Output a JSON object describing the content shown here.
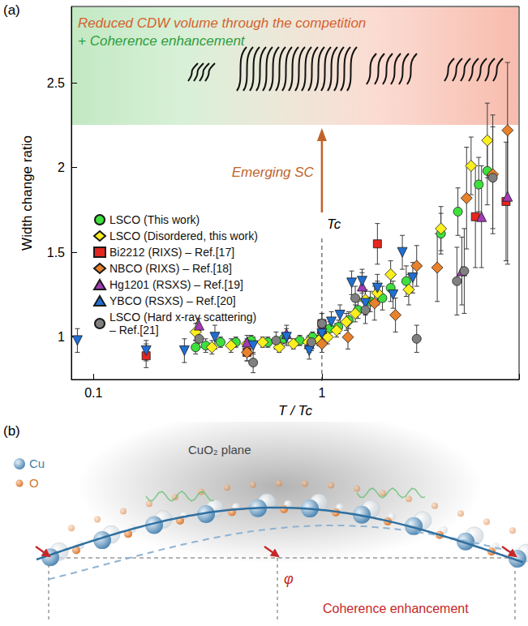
{
  "chart_data": {
    "type": "scatter",
    "label": "(a)",
    "x_label": "T / Tc",
    "y_label": "Width change ratio",
    "log": "x",
    "xlim": [
      0.08,
      7.3
    ],
    "xticks": [
      0.1,
      1
    ],
    "ylim": [
      0.75,
      2.95
    ],
    "yticks": [
      1,
      1.5,
      2,
      2.5
    ],
    "grid": false,
    "legend": "left",
    "reference_line": {
      "x": 1,
      "label": "Tc"
    },
    "annotations": [
      {
        "text": "Reduced CDW volume through the competition",
        "color": "#d4622e"
      },
      {
        "text": "+ Coherence enhancement",
        "color": "#2e9e3e"
      },
      {
        "text": "Emerging SC",
        "color": "#c0632a"
      }
    ],
    "series": [
      {
        "name": "LSCO (This work)",
        "color": "#3ee03e",
        "marker": "circle",
        "x": [
          0.28,
          0.31,
          0.36,
          0.42,
          0.49,
          0.58,
          0.68,
          0.8,
          0.91,
          1.0,
          1.08,
          1.18,
          1.31,
          1.44,
          1.63,
          1.84,
          2.0,
          2.34,
          3.32,
          3.94,
          4.86,
          5.3
        ],
        "values": [
          0.94,
          0.95,
          0.97,
          0.97,
          0.98,
          0.97,
          0.99,
          0.98,
          1.0,
          1.03,
          1.05,
          1.06,
          1.1,
          1.16,
          1.21,
          1.23,
          1.29,
          1.33,
          1.61,
          1.74,
          1.9,
          1.98
        ],
        "errors": [
          0.04,
          0.04,
          0.03,
          0.03,
          0.03,
          0.03,
          0.03,
          0.03,
          0.03,
          0.04,
          0.04,
          0.04,
          0.05,
          0.05,
          0.06,
          0.07,
          0.08,
          0.09,
          0.12,
          0.14,
          0.16,
          0.2
        ]
      },
      {
        "name": "LSCO (Disordered, this work)",
        "color": "#fbee1e",
        "marker": "diamond",
        "x": [
          0.28,
          0.33,
          0.4,
          0.47,
          0.55,
          0.65,
          0.75,
          0.87,
          0.97,
          1.06,
          1.16,
          1.28,
          1.4,
          1.55,
          1.75,
          2.0,
          2.4,
          3.32,
          4.5,
          5.3
        ],
        "values": [
          1.03,
          0.94,
          0.95,
          0.96,
          0.97,
          0.94,
          0.96,
          0.97,
          0.98,
          1.0,
          1.04,
          1.09,
          1.14,
          1.22,
          1.26,
          1.37,
          1.28,
          1.64,
          2.01,
          2.16
        ],
        "errors": [
          0.05,
          0.04,
          0.04,
          0.03,
          0.03,
          0.03,
          0.03,
          0.03,
          0.03,
          0.04,
          0.04,
          0.05,
          0.05,
          0.06,
          0.07,
          0.08,
          0.09,
          0.13,
          0.17,
          0.22
        ]
      },
      {
        "name": "Bi2212 (RIXS) – Ref.[17]",
        "color": "#e4261f",
        "marker": "square",
        "x": [
          0.17,
          0.47,
          1.0,
          1.75,
          4.7,
          6.4
        ],
        "values": [
          0.89,
          0.91,
          1.08,
          1.55,
          1.71,
          1.8
        ],
        "errors": [
          0.07,
          0.05,
          0.06,
          0.12,
          0.3,
          0.35
        ]
      },
      {
        "name": "NBCO (RIXS) – Ref.[18]",
        "color": "#e8812b",
        "marker": "diamond",
        "x": [
          0.47,
          1.0,
          1.3,
          1.7,
          2.1,
          2.6,
          3.2,
          4.3,
          5.6,
          6.5
        ],
        "values": [
          0.91,
          0.96,
          1.0,
          1.2,
          1.13,
          1.42,
          1.41,
          1.82,
          1.96,
          2.22
        ],
        "errors": [
          0.05,
          0.05,
          0.07,
          0.1,
          0.1,
          0.12,
          0.2,
          0.3,
          0.35,
          0.4
        ]
      },
      {
        "name": "Hg1201 (RSXS) – Ref.[19]",
        "color": "#a23bb5",
        "marker": "triangle",
        "x": [
          0.29,
          0.47,
          0.7,
          0.88,
          1.0,
          1.5,
          4.1,
          5.0,
          6.5
        ],
        "values": [
          1.07,
          0.97,
          1.02,
          0.96,
          1.05,
          1.3,
          1.39,
          1.71,
          1.83
        ],
        "errors": [
          0.04,
          0.04,
          0.05,
          0.05,
          0.05,
          0.08,
          0.2,
          0.3,
          0.4
        ]
      },
      {
        "name": "YBCO (RSXS) – Ref.[20]",
        "color": "#1f6fd4",
        "marker": "triangle_down",
        "x": [
          0.085,
          0.17,
          0.25,
          0.34,
          0.5,
          0.7,
          0.88,
          1.0,
          1.1,
          1.2,
          1.35,
          1.5,
          1.55,
          1.75,
          2.05,
          2.25,
          2.5
        ],
        "values": [
          0.98,
          0.92,
          0.92,
          1.0,
          0.95,
          1.0,
          0.92,
          1.02,
          1.09,
          1.13,
          1.32,
          1.33,
          1.2,
          1.29,
          1.25,
          1.5,
          1.35
        ],
        "errors": [
          0.07,
          0.06,
          0.07,
          0.07,
          0.05,
          0.05,
          0.05,
          0.06,
          0.06,
          0.06,
          0.07,
          0.07,
          0.07,
          0.08,
          0.08,
          0.1,
          0.09
        ]
      },
      {
        "name": "LSCO (Hard x-ray scattering) – Ref.[21]",
        "color": "#808080",
        "marker": "circle",
        "x": [
          0.29,
          0.5,
          0.63,
          0.9,
          1.0,
          1.4,
          1.55,
          2.6,
          3.9,
          4.2,
          5.6
        ],
        "values": [
          0.99,
          0.85,
          0.98,
          0.97,
          1.08,
          1.23,
          1.16,
          0.99,
          1.33,
          1.39,
          1.94
        ],
        "errors": [
          0.05,
          0.06,
          0.05,
          0.05,
          0.06,
          0.07,
          0.08,
          0.08,
          0.2,
          0.25,
          0.3
        ]
      }
    ]
  },
  "diagram": {
    "label": "(b)",
    "plane_label": "CuO₂ plane",
    "legend": [
      {
        "label": "Cu"
      },
      {
        "label": "O"
      }
    ],
    "phase_label": "φ",
    "caption": "Coherence enhancement"
  }
}
